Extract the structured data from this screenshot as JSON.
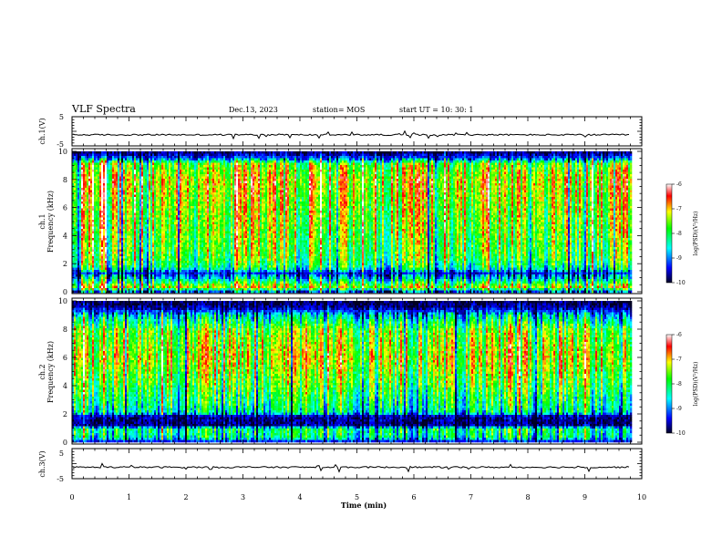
{
  "header": {
    "title": "VLF Spectra",
    "date": "Dec.13, 2023",
    "station": "station= MOS",
    "start": "start  UT =   10: 30: 1"
  },
  "colors": {
    "axis": "#000000",
    "colormap": [
      "#000022",
      "#0000ff",
      "#00ffff",
      "#00ff00",
      "#ffff00",
      "#ff0000",
      "#ffffff"
    ]
  },
  "chart_data": [
    {
      "type": "line",
      "panel": "ch1_voltage",
      "ylabel": "ch.1(V)",
      "ylim": [
        -5,
        5
      ],
      "yticks": [
        {
          "v": 5,
          "label": "5"
        },
        {
          "v": -5,
          "label": "-5"
        }
      ],
      "baseline": -1.2,
      "xlim": [
        0,
        10
      ]
    },
    {
      "type": "heatmap",
      "panel": "ch1_spectrogram",
      "ylabel_channel": "ch.1",
      "ylabel": "Frequency (kHz)",
      "ylim": [
        0,
        10
      ],
      "yticks": [
        0,
        2,
        4,
        6,
        8,
        10
      ],
      "xlim": [
        0,
        9.8
      ],
      "colorbar": {
        "label": "log(PSD)(V²/Hz)",
        "range": [
          -10,
          -6
        ],
        "ticks": [
          {
            "v": -6,
            "label": "-6"
          },
          {
            "v": -7,
            "label": "-7"
          },
          {
            "v": -8,
            "label": "-8"
          },
          {
            "v": -9,
            "label": "-9"
          },
          {
            "v": -10,
            "label": "-10"
          }
        ]
      },
      "intensity_profile": [
        {
          "f": 0.0,
          "level": 0.05
        },
        {
          "f": 0.4,
          "level": 0.7
        },
        {
          "f": 1.0,
          "level": 0.35
        },
        {
          "f": 1.4,
          "level": 0.15
        },
        {
          "f": 1.8,
          "level": 0.45
        },
        {
          "f": 2.4,
          "level": 0.55
        },
        {
          "f": 4.0,
          "level": 0.6
        },
        {
          "f": 6.0,
          "level": 0.65
        },
        {
          "f": 8.0,
          "level": 0.72
        },
        {
          "f": 9.2,
          "level": 0.6
        },
        {
          "f": 9.6,
          "level": 0.2
        },
        {
          "f": 10.0,
          "level": 0.05
        }
      ]
    },
    {
      "type": "heatmap",
      "panel": "ch2_spectrogram",
      "ylabel_channel": "ch.2",
      "ylabel": "Frequency (kHz)",
      "ylim": [
        0,
        10
      ],
      "yticks": [
        0,
        2,
        4,
        6,
        8,
        10
      ],
      "xlim": [
        0,
        9.8
      ],
      "colorbar": {
        "label": "log(PSD)(V²/Hz)",
        "range": [
          -10,
          -6
        ],
        "ticks": [
          {
            "v": -6,
            "label": "-6"
          },
          {
            "v": -7,
            "label": "-7"
          },
          {
            "v": -8,
            "label": "-8"
          },
          {
            "v": -9,
            "label": "-9"
          },
          {
            "v": -10,
            "label": "-10"
          }
        ]
      },
      "intensity_profile": [
        {
          "f": 0.0,
          "level": 0.02
        },
        {
          "f": 0.4,
          "level": 0.4
        },
        {
          "f": 1.0,
          "level": 0.45
        },
        {
          "f": 1.3,
          "level": 0.05
        },
        {
          "f": 1.9,
          "level": 0.08
        },
        {
          "f": 2.2,
          "level": 0.4
        },
        {
          "f": 4.0,
          "level": 0.55
        },
        {
          "f": 6.0,
          "level": 0.68
        },
        {
          "f": 8.0,
          "level": 0.6
        },
        {
          "f": 9.0,
          "level": 0.35
        },
        {
          "f": 9.6,
          "level": 0.08
        },
        {
          "f": 10.0,
          "level": 0.02
        }
      ]
    },
    {
      "type": "line",
      "panel": "ch3_voltage",
      "ylabel": "ch.3(V)",
      "ylim": [
        -5,
        5
      ],
      "yticks": [
        {
          "v": 5,
          "label": "5"
        },
        {
          "v": -5,
          "label": "-5"
        }
      ],
      "baseline": -1.2,
      "xlim": [
        0,
        10
      ]
    }
  ],
  "x_axis": {
    "label": "Time  (min)",
    "range": [
      0,
      10
    ],
    "ticks": [
      "0",
      "1",
      "2",
      "3",
      "4",
      "5",
      "6",
      "7",
      "8",
      "9",
      "10"
    ]
  }
}
